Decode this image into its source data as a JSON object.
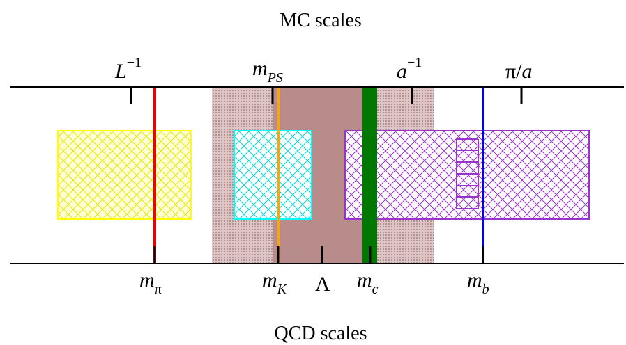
{
  "titles": {
    "top": "MC scales",
    "bottom": "QCD scales"
  },
  "mc_labels": {
    "l_inv": {
      "base": "L",
      "sup": "−1"
    },
    "m_ps": {
      "base": "m",
      "sub": "PS"
    },
    "a_inv": {
      "base": "a",
      "sup": "−1"
    },
    "pi_over_a": {
      "pi": "π",
      "slash": "/",
      "a": "a"
    }
  },
  "qcd_labels": {
    "m_pi": {
      "base": "m",
      "sub": "π"
    },
    "m_k": {
      "base": "m",
      "sub": "K"
    },
    "lambda": "Λ",
    "m_c": {
      "base": "m",
      "sub": "c"
    },
    "m_b": {
      "base": "m",
      "sub": "b"
    }
  },
  "colors": {
    "axis": "#000000",
    "m_pi_line": "#ee0000",
    "m_k_line": "#ffa500",
    "m_c_band": "#007800",
    "m_b_line": "#0000dd",
    "region_light": "#c9a6a6",
    "region_dark": "#b98c8c",
    "yellow_box": "#ffff00",
    "cyan_box": "#00ffff",
    "purple_box": "#9933cc"
  }
}
